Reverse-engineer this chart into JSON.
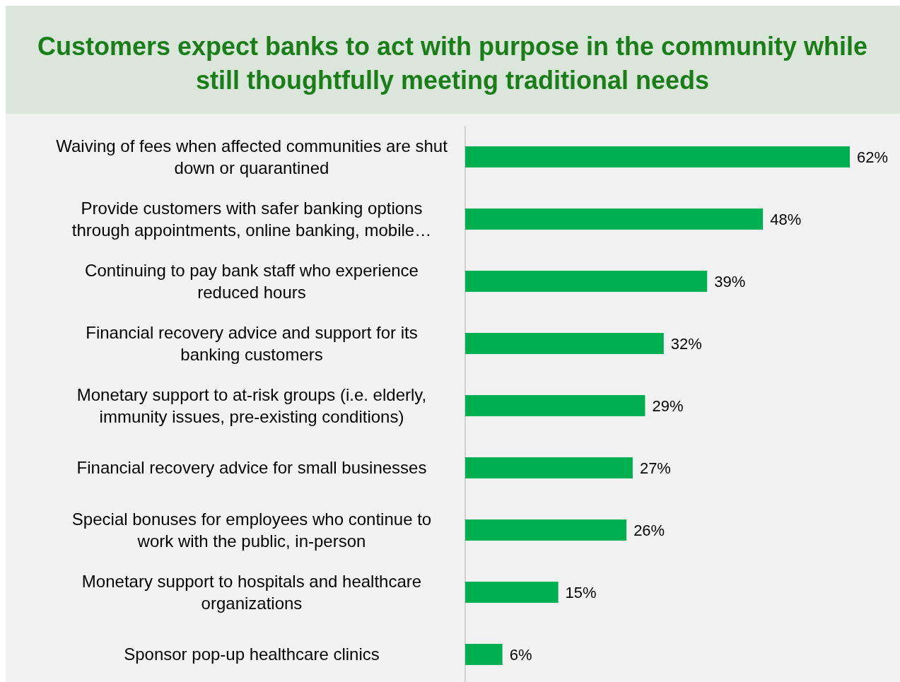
{
  "chart_data": {
    "type": "bar",
    "orientation": "horizontal",
    "title": "Customers expect banks to act with purpose in the community while still thoughtfully meeting traditional needs",
    "categories": [
      "Waiving of fees when affected communities are shut down or quarantined",
      "Provide customers with safer banking options through appointments, online banking, mobile…",
      "Continuing to pay bank staff who experience reduced hours",
      "Financial recovery advice and support for its banking customers",
      "Monetary support to at-risk groups (i.e. elderly, immunity issues, pre-existing conditions)",
      "Financial recovery advice for small businesses",
      "Special bonuses for employees who continue to work with the public, in-person",
      "Monetary support to hospitals and healthcare organizations",
      "Sponsor pop-up healthcare clinics"
    ],
    "values": [
      62,
      48,
      39,
      32,
      29,
      27,
      26,
      15,
      6
    ],
    "value_labels": [
      "62%",
      "48%",
      "39%",
      "32%",
      "29%",
      "27%",
      "26%",
      "15%",
      "6%"
    ],
    "color": "#00b050"
  }
}
